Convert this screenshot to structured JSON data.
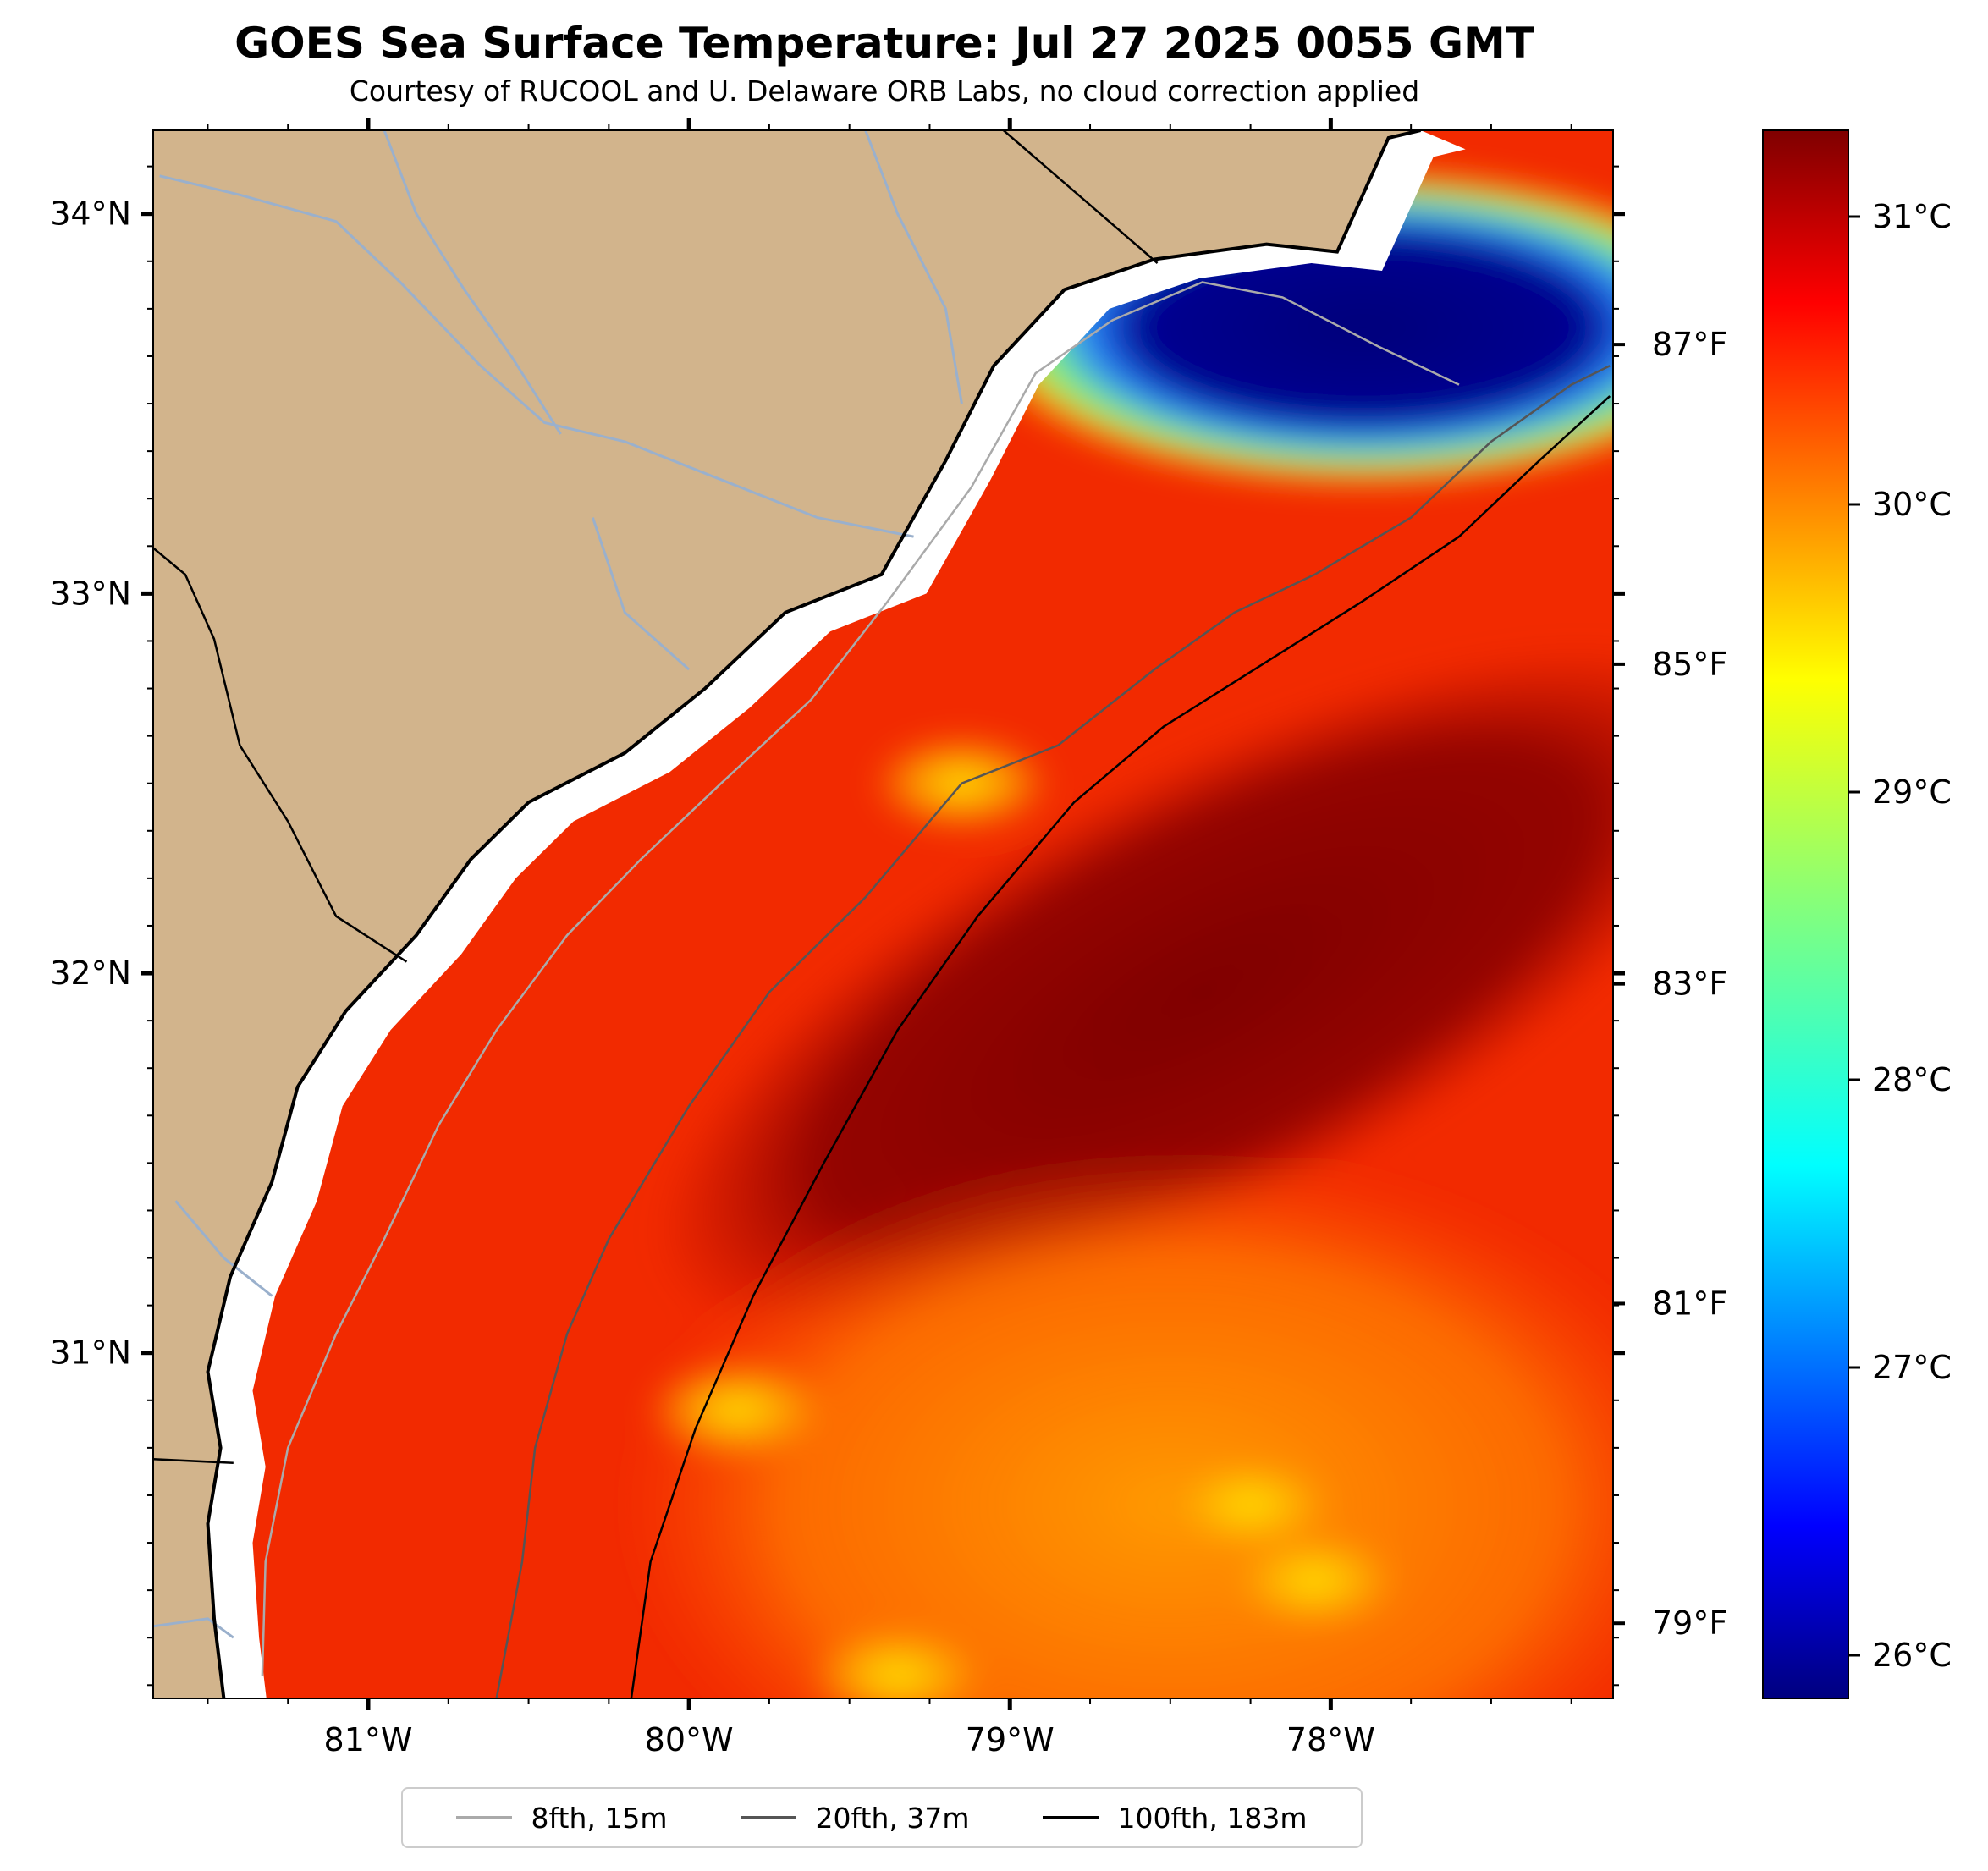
{
  "figure": {
    "title": "GOES Sea Surface Temperature: Jul 27 2025 0055 GMT",
    "subtitle": "Courtesy of RUCOOL and U. Delaware ORB Labs, no cloud correction applied"
  },
  "map": {
    "lon_range": [
      -81.67,
      -77.12
    ],
    "lat_range": [
      30.09,
      34.22
    ],
    "lon_ticks": [
      {
        "value": -81,
        "label": "81°W"
      },
      {
        "value": -80,
        "label": "80°W"
      },
      {
        "value": -79,
        "label": "79°W"
      },
      {
        "value": -78,
        "label": "78°W"
      }
    ],
    "lat_ticks": [
      {
        "value": 31,
        "label": "31°N"
      },
      {
        "value": 32,
        "label": "32°N"
      },
      {
        "value": 33,
        "label": "33°N"
      },
      {
        "value": 34,
        "label": "34°N"
      }
    ],
    "fahrenheit_ticks": [
      {
        "value": 79,
        "label": "79°F"
      },
      {
        "value": 81,
        "label": "81°F"
      },
      {
        "value": 83,
        "label": "83°F"
      },
      {
        "value": 85,
        "label": "85°F"
      },
      {
        "value": 87,
        "label": "87°F"
      }
    ],
    "land_color": "#d2b48c",
    "no_data_color": "#ffffff",
    "river_color": "#9ab0cc",
    "coastline": [
      [
        -81.45,
        30.09
      ],
      [
        -81.48,
        30.3
      ],
      [
        -81.5,
        30.55
      ],
      [
        -81.46,
        30.75
      ],
      [
        -81.5,
        30.95
      ],
      [
        -81.43,
        31.2
      ],
      [
        -81.3,
        31.45
      ],
      [
        -81.22,
        31.7
      ],
      [
        -81.07,
        31.9
      ],
      [
        -80.85,
        32.1
      ],
      [
        -80.68,
        32.3
      ],
      [
        -80.5,
        32.45
      ],
      [
        -80.2,
        32.58
      ],
      [
        -79.95,
        32.75
      ],
      [
        -79.7,
        32.95
      ],
      [
        -79.4,
        33.05
      ],
      [
        -79.2,
        33.35
      ],
      [
        -79.05,
        33.6
      ],
      [
        -78.83,
        33.8
      ],
      [
        -78.55,
        33.88
      ],
      [
        -78.2,
        33.92
      ],
      [
        -77.98,
        33.9
      ],
      [
        -77.82,
        34.2
      ],
      [
        -77.72,
        34.22
      ]
    ],
    "rivers": [
      [
        [
          -81.65,
          34.1
        ],
        [
          -81.4,
          34.05
        ],
        [
          -81.1,
          33.98
        ],
        [
          -80.9,
          33.82
        ],
        [
          -80.65,
          33.6
        ],
        [
          -80.45,
          33.45
        ],
        [
          -80.2,
          33.4
        ],
        [
          -79.9,
          33.3
        ],
        [
          -79.6,
          33.2
        ],
        [
          -79.3,
          33.15
        ]
      ],
      [
        [
          -80.95,
          34.22
        ],
        [
          -80.85,
          34.0
        ],
        [
          -80.7,
          33.8
        ],
        [
          -80.55,
          33.62
        ],
        [
          -80.4,
          33.42
        ]
      ],
      [
        [
          -79.45,
          34.22
        ],
        [
          -79.35,
          34.0
        ],
        [
          -79.2,
          33.75
        ],
        [
          -79.15,
          33.5
        ]
      ],
      [
        [
          -80.3,
          33.2
        ],
        [
          -80.2,
          32.95
        ],
        [
          -80.0,
          32.8
        ]
      ],
      [
        [
          -81.6,
          31.4
        ],
        [
          -81.45,
          31.25
        ],
        [
          -81.3,
          31.15
        ]
      ],
      [
        [
          -81.67,
          30.28
        ],
        [
          -81.5,
          30.3
        ],
        [
          -81.42,
          30.25
        ]
      ]
    ],
    "state_borders": [
      [
        [
          -81.67,
          33.12
        ],
        [
          -81.57,
          33.05
        ],
        [
          -81.48,
          32.88
        ],
        [
          -81.4,
          32.6
        ],
        [
          -81.25,
          32.4
        ],
        [
          -81.1,
          32.15
        ],
        [
          -80.88,
          32.03
        ]
      ],
      [
        [
          -79.02,
          34.22
        ],
        [
          -78.54,
          33.87
        ]
      ],
      [
        [
          -81.67,
          30.72
        ],
        [
          -81.42,
          30.71
        ]
      ]
    ]
  },
  "isobaths": [
    {
      "label": "8fth, 15m",
      "color": "#aaaaaa",
      "points": [
        [
          -81.33,
          30.15
        ],
        [
          -81.32,
          30.45
        ],
        [
          -81.25,
          30.75
        ],
        [
          -81.1,
          31.05
        ],
        [
          -80.95,
          31.3
        ],
        [
          -80.78,
          31.6
        ],
        [
          -80.6,
          31.85
        ],
        [
          -80.38,
          32.1
        ],
        [
          -80.15,
          32.3
        ],
        [
          -79.9,
          32.5
        ],
        [
          -79.62,
          32.72
        ],
        [
          -79.38,
          32.98
        ],
        [
          -79.12,
          33.28
        ],
        [
          -78.92,
          33.58
        ],
        [
          -78.68,
          33.72
        ],
        [
          -78.4,
          33.82
        ],
        [
          -78.15,
          33.78
        ],
        [
          -77.85,
          33.65
        ],
        [
          -77.6,
          33.55
        ]
      ]
    },
    {
      "label": "20fth, 37m",
      "color": "#555555",
      "points": [
        [
          -80.6,
          30.09
        ],
        [
          -80.52,
          30.45
        ],
        [
          -80.48,
          30.75
        ],
        [
          -80.38,
          31.05
        ],
        [
          -80.25,
          31.3
        ],
        [
          -80.0,
          31.65
        ],
        [
          -79.75,
          31.95
        ],
        [
          -79.45,
          32.2
        ],
        [
          -79.15,
          32.5
        ],
        [
          -78.85,
          32.6
        ],
        [
          -78.55,
          32.8
        ],
        [
          -78.3,
          32.95
        ],
        [
          -78.05,
          33.05
        ],
        [
          -77.75,
          33.2
        ],
        [
          -77.5,
          33.4
        ],
        [
          -77.25,
          33.55
        ],
        [
          -77.13,
          33.6
        ]
      ]
    },
    {
      "label": "100fth, 183m",
      "color": "#000000",
      "points": [
        [
          -80.18,
          30.09
        ],
        [
          -80.12,
          30.45
        ],
        [
          -79.98,
          30.8
        ],
        [
          -79.8,
          31.15
        ],
        [
          -79.58,
          31.5
        ],
        [
          -79.35,
          31.85
        ],
        [
          -79.1,
          32.15
        ],
        [
          -78.8,
          32.45
        ],
        [
          -78.52,
          32.65
        ],
        [
          -78.2,
          32.82
        ],
        [
          -77.9,
          32.98
        ],
        [
          -77.6,
          33.15
        ],
        [
          -77.35,
          33.35
        ],
        [
          -77.13,
          33.52
        ]
      ]
    }
  ],
  "sst_field": {
    "source": "GOES",
    "cold_plume_center": [
      -77.9,
      33.7
    ],
    "warm_core_center": [
      -78.4,
      31.95
    ],
    "yellow_patches": [
      [
        -79.15,
        32.5
      ],
      [
        -78.05,
        30.4
      ],
      [
        -78.25,
        30.6
      ],
      [
        -79.85,
        30.85
      ],
      [
        -79.35,
        30.15
      ]
    ]
  },
  "colorbar": {
    "colormap": "jet",
    "vmin": 25.85,
    "vmax": 31.3,
    "ticks": [
      {
        "value": 26,
        "label": "26°C"
      },
      {
        "value": 27,
        "label": "27°C"
      },
      {
        "value": 28,
        "label": "28°C"
      },
      {
        "value": 29,
        "label": "29°C"
      },
      {
        "value": 30,
        "label": "30°C"
      },
      {
        "value": 31,
        "label": "31°C"
      }
    ]
  },
  "legend": {
    "items": [
      {
        "label": "8fth, 15m",
        "color": "#aaaaaa"
      },
      {
        "label": "20fth, 37m",
        "color": "#555555"
      },
      {
        "label": "100fth, 183m",
        "color": "#000000"
      }
    ]
  }
}
